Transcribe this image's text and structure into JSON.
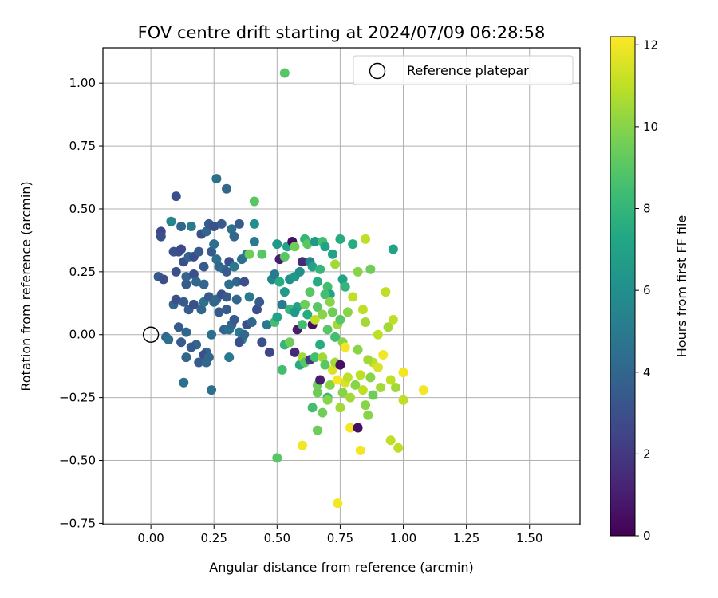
{
  "chart_data": {
    "type": "scatter",
    "title": "FOV centre drift starting at 2024/07/09 06:28:58",
    "xlabel": "Angular distance from reference (arcmin)",
    "ylabel": "Rotation from reference (arcmin)",
    "xlim": [
      -0.19,
      1.7
    ],
    "ylim": [
      -0.755,
      1.14
    ],
    "xticks": [
      0.0,
      0.25,
      0.5,
      0.75,
      1.0,
      1.25,
      1.5
    ],
    "xtick_labels": [
      "0.00",
      "0.25",
      "0.50",
      "0.75",
      "1.00",
      "1.25",
      "1.50"
    ],
    "yticks": [
      -0.75,
      -0.5,
      -0.25,
      0.0,
      0.25,
      0.5,
      0.75,
      1.0
    ],
    "ytick_labels": [
      "−0.75",
      "−0.50",
      "−0.25",
      "0.00",
      "0.25",
      "0.50",
      "0.75",
      "1.00"
    ],
    "grid": true,
    "legend": {
      "placement": "top-right",
      "entries": [
        {
          "label": "Reference platepar",
          "marker": "open-circle",
          "x": 0.0,
          "y": 0.0
        }
      ]
    },
    "colorbar": {
      "label": "Hours from first FF file",
      "colormap": "viridis",
      "range": [
        0,
        12.2
      ],
      "ticks": [
        0,
        2,
        4,
        6,
        8,
        10,
        12
      ],
      "tick_labels": [
        "0",
        "2",
        "4",
        "6",
        "8",
        "10",
        "12"
      ]
    },
    "points": [
      {
        "x": 0.1,
        "y": 0.55,
        "h": 3.0
      },
      {
        "x": 0.26,
        "y": 0.62,
        "h": 4.5
      },
      {
        "x": 0.3,
        "y": 0.58,
        "h": 4.0
      },
      {
        "x": 0.04,
        "y": 0.41,
        "h": 2.6
      },
      {
        "x": 0.04,
        "y": 0.39,
        "h": 3.0
      },
      {
        "x": 0.03,
        "y": 0.23,
        "h": 3.5
      },
      {
        "x": 0.05,
        "y": 0.22,
        "h": 3.0
      },
      {
        "x": 0.08,
        "y": 0.45,
        "h": 5.5
      },
      {
        "x": 0.09,
        "y": 0.33,
        "h": 3.0
      },
      {
        "x": 0.1,
        "y": 0.25,
        "h": 3.0
      },
      {
        "x": 0.11,
        "y": 0.33,
        "h": 3.0
      },
      {
        "x": 0.12,
        "y": 0.43,
        "h": 4.0
      },
      {
        "x": 0.12,
        "y": 0.34,
        "h": 2.6
      },
      {
        "x": 0.13,
        "y": 0.29,
        "h": 3.0
      },
      {
        "x": 0.14,
        "y": 0.2,
        "h": 3.5
      },
      {
        "x": 0.14,
        "y": 0.23,
        "h": 4.0
      },
      {
        "x": 0.15,
        "y": 0.31,
        "h": 4.0
      },
      {
        "x": 0.16,
        "y": 0.43,
        "h": 5.0
      },
      {
        "x": 0.17,
        "y": 0.31,
        "h": 3.0
      },
      {
        "x": 0.17,
        "y": 0.24,
        "h": 3.0
      },
      {
        "x": 0.18,
        "y": 0.21,
        "h": 4.0
      },
      {
        "x": 0.19,
        "y": 0.33,
        "h": 3.5
      },
      {
        "x": 0.2,
        "y": 0.4,
        "h": 3.0
      },
      {
        "x": 0.21,
        "y": 0.27,
        "h": 3.5
      },
      {
        "x": 0.21,
        "y": 0.2,
        "h": 4.0
      },
      {
        "x": 0.22,
        "y": 0.41,
        "h": 4.0
      },
      {
        "x": 0.23,
        "y": 0.44,
        "h": 3.5
      },
      {
        "x": 0.24,
        "y": 0.33,
        "h": 3.5
      },
      {
        "x": 0.25,
        "y": 0.43,
        "h": 3.0
      },
      {
        "x": 0.25,
        "y": 0.36,
        "h": 4.5
      },
      {
        "x": 0.26,
        "y": 0.3,
        "h": 4.5
      },
      {
        "x": 0.27,
        "y": 0.27,
        "h": 4.0
      },
      {
        "x": 0.28,
        "y": 0.44,
        "h": 3.5
      },
      {
        "x": 0.29,
        "y": 0.26,
        "h": 4.5
      },
      {
        "x": 0.3,
        "y": 0.25,
        "h": 3.5
      },
      {
        "x": 0.31,
        "y": 0.29,
        "h": 3.0
      },
      {
        "x": 0.31,
        "y": 0.2,
        "h": 4.5
      },
      {
        "x": 0.32,
        "y": 0.42,
        "h": 4.5
      },
      {
        "x": 0.33,
        "y": 0.39,
        "h": 4.0
      },
      {
        "x": 0.33,
        "y": 0.27,
        "h": 5.0
      },
      {
        "x": 0.34,
        "y": 0.21,
        "h": 4.0
      },
      {
        "x": 0.35,
        "y": 0.44,
        "h": 3.5
      },
      {
        "x": 0.36,
        "y": 0.3,
        "h": 4.5
      },
      {
        "x": 0.37,
        "y": 0.21,
        "h": 3.0
      },
      {
        "x": 0.38,
        "y": 0.32,
        "h": 5.0
      },
      {
        "x": 0.41,
        "y": 0.44,
        "h": 6.0
      },
      {
        "x": 0.41,
        "y": 0.37,
        "h": 5.0
      },
      {
        "x": 0.09,
        "y": 0.12,
        "h": 4.0
      },
      {
        "x": 0.1,
        "y": 0.14,
        "h": 3.0
      },
      {
        "x": 0.11,
        "y": 0.03,
        "h": 3.5
      },
      {
        "x": 0.13,
        "y": 0.13,
        "h": 3.5
      },
      {
        "x": 0.14,
        "y": 0.01,
        "h": 4.0
      },
      {
        "x": 0.15,
        "y": 0.1,
        "h": 3.5
      },
      {
        "x": 0.17,
        "y": 0.12,
        "h": 3.0
      },
      {
        "x": 0.18,
        "y": -0.04,
        "h": 4.0
      },
      {
        "x": 0.2,
        "y": 0.1,
        "h": 4.0
      },
      {
        "x": 0.21,
        "y": 0.13,
        "h": 4.5
      },
      {
        "x": 0.22,
        "y": -0.07,
        "h": 4.0
      },
      {
        "x": 0.23,
        "y": 0.15,
        "h": 3.5
      },
      {
        "x": 0.24,
        "y": 0.0,
        "h": 4.5
      },
      {
        "x": 0.25,
        "y": 0.13,
        "h": 4.0
      },
      {
        "x": 0.26,
        "y": 0.14,
        "h": 4.0
      },
      {
        "x": 0.27,
        "y": 0.09,
        "h": 3.5
      },
      {
        "x": 0.28,
        "y": 0.16,
        "h": 3.0
      },
      {
        "x": 0.29,
        "y": 0.02,
        "h": 4.0
      },
      {
        "x": 0.3,
        "y": 0.15,
        "h": 3.5
      },
      {
        "x": 0.3,
        "y": 0.1,
        "h": 3.5
      },
      {
        "x": 0.31,
        "y": 0.02,
        "h": 4.5
      },
      {
        "x": 0.32,
        "y": 0.04,
        "h": 4.0
      },
      {
        "x": 0.33,
        "y": 0.06,
        "h": 3.5
      },
      {
        "x": 0.34,
        "y": 0.14,
        "h": 4.0
      },
      {
        "x": 0.35,
        "y": 0.01,
        "h": 5.0
      },
      {
        "x": 0.36,
        "y": -0.02,
        "h": 5.5
      },
      {
        "x": 0.37,
        "y": 0.0,
        "h": 4.0
      },
      {
        "x": 0.38,
        "y": 0.04,
        "h": 3.0
      },
      {
        "x": 0.06,
        "y": -0.01,
        "h": 4.0
      },
      {
        "x": 0.07,
        "y": -0.02,
        "h": 4.5
      },
      {
        "x": 0.12,
        "y": -0.03,
        "h": 3.5
      },
      {
        "x": 0.14,
        "y": -0.09,
        "h": 4.0
      },
      {
        "x": 0.16,
        "y": -0.05,
        "h": 3.5
      },
      {
        "x": 0.19,
        "y": -0.11,
        "h": 3.5
      },
      {
        "x": 0.21,
        "y": -0.08,
        "h": 3.0
      },
      {
        "x": 0.22,
        "y": -0.11,
        "h": 4.0
      },
      {
        "x": 0.23,
        "y": -0.09,
        "h": 4.0
      },
      {
        "x": 0.13,
        "y": -0.19,
        "h": 4.5
      },
      {
        "x": 0.24,
        "y": -0.22,
        "h": 4.5
      },
      {
        "x": 0.31,
        "y": -0.09,
        "h": 5.0
      },
      {
        "x": 0.35,
        "y": -0.03,
        "h": 3.0
      },
      {
        "x": 0.39,
        "y": 0.15,
        "h": 5.0
      },
      {
        "x": 0.4,
        "y": 0.05,
        "h": 4.0
      },
      {
        "x": 0.42,
        "y": 0.1,
        "h": 3.0
      },
      {
        "x": 0.43,
        "y": 0.13,
        "h": 3.5
      },
      {
        "x": 0.44,
        "y": -0.03,
        "h": 3.0
      },
      {
        "x": 0.46,
        "y": 0.04,
        "h": 5.0
      },
      {
        "x": 0.47,
        "y": -0.07,
        "h": 2.5
      },
      {
        "x": 0.48,
        "y": 0.22,
        "h": 5.5
      },
      {
        "x": 0.49,
        "y": 0.24,
        "h": 5.0
      },
      {
        "x": 0.5,
        "y": 0.36,
        "h": 6.5
      },
      {
        "x": 0.51,
        "y": 0.3,
        "h": 1.0
      },
      {
        "x": 0.52,
        "y": 0.12,
        "h": 5.0
      },
      {
        "x": 0.53,
        "y": 0.31,
        "h": 9.0
      },
      {
        "x": 0.54,
        "y": 0.35,
        "h": 7.0
      },
      {
        "x": 0.55,
        "y": 0.22,
        "h": 6.0
      },
      {
        "x": 0.56,
        "y": 0.37,
        "h": 0.5
      },
      {
        "x": 0.57,
        "y": 0.35,
        "h": 9.5
      },
      {
        "x": 0.57,
        "y": 0.23,
        "h": 6.5
      },
      {
        "x": 0.58,
        "y": 0.11,
        "h": 7.0
      },
      {
        "x": 0.59,
        "y": 0.25,
        "h": 6.0
      },
      {
        "x": 0.6,
        "y": 0.29,
        "h": 1.5
      },
      {
        "x": 0.61,
        "y": 0.38,
        "h": 8.0
      },
      {
        "x": 0.62,
        "y": 0.36,
        "h": 9.0
      },
      {
        "x": 0.63,
        "y": 0.29,
        "h": 5.5
      },
      {
        "x": 0.64,
        "y": 0.27,
        "h": 7.0
      },
      {
        "x": 0.65,
        "y": 0.37,
        "h": 6.5
      },
      {
        "x": 0.66,
        "y": 0.21,
        "h": 7.5
      },
      {
        "x": 0.67,
        "y": 0.26,
        "h": 8.0
      },
      {
        "x": 0.68,
        "y": 0.37,
        "h": 8.5
      },
      {
        "x": 0.69,
        "y": 0.35,
        "h": 7.0
      },
      {
        "x": 0.7,
        "y": 0.19,
        "h": 8.5
      },
      {
        "x": 0.71,
        "y": 0.16,
        "h": 7.0
      },
      {
        "x": 0.72,
        "y": 0.32,
        "h": 7.0
      },
      {
        "x": 0.73,
        "y": 0.28,
        "h": 10.5
      },
      {
        "x": 0.75,
        "y": 0.38,
        "h": 7.5
      },
      {
        "x": 0.76,
        "y": 0.22,
        "h": 7.0
      },
      {
        "x": 0.77,
        "y": 0.19,
        "h": 8.0
      },
      {
        "x": 0.8,
        "y": 0.36,
        "h": 7.5
      },
      {
        "x": 0.82,
        "y": 0.25,
        "h": 10.0
      },
      {
        "x": 0.85,
        "y": 0.38,
        "h": 11.0
      },
      {
        "x": 0.87,
        "y": 0.26,
        "h": 9.5
      },
      {
        "x": 0.96,
        "y": 0.34,
        "h": 7.0
      },
      {
        "x": 0.41,
        "y": 0.53,
        "h": 9.0
      },
      {
        "x": 0.53,
        "y": 1.04,
        "h": 9.0
      },
      {
        "x": 0.39,
        "y": 0.32,
        "h": 9.5
      },
      {
        "x": 0.44,
        "y": 0.32,
        "h": 9.0
      },
      {
        "x": 0.49,
        "y": 0.05,
        "h": 8.5
      },
      {
        "x": 0.5,
        "y": 0.07,
        "h": 7.0
      },
      {
        "x": 0.51,
        "y": 0.21,
        "h": 7.5
      },
      {
        "x": 0.53,
        "y": 0.17,
        "h": 6.5
      },
      {
        "x": 0.55,
        "y": 0.1,
        "h": 8.0
      },
      {
        "x": 0.57,
        "y": 0.09,
        "h": 6.5
      },
      {
        "x": 0.58,
        "y": 0.02,
        "h": 1.0
      },
      {
        "x": 0.6,
        "y": 0.04,
        "h": 8.5
      },
      {
        "x": 0.61,
        "y": 0.12,
        "h": 9.5
      },
      {
        "x": 0.62,
        "y": 0.08,
        "h": 7.5
      },
      {
        "x": 0.63,
        "y": 0.17,
        "h": 9.0
      },
      {
        "x": 0.64,
        "y": 0.04,
        "h": 0.5
      },
      {
        "x": 0.65,
        "y": 0.06,
        "h": 11.0
      },
      {
        "x": 0.66,
        "y": 0.11,
        "h": 9.0
      },
      {
        "x": 0.67,
        "y": -0.04,
        "h": 7.5
      },
      {
        "x": 0.68,
        "y": 0.08,
        "h": 10.0
      },
      {
        "x": 0.69,
        "y": 0.16,
        "h": 8.5
      },
      {
        "x": 0.7,
        "y": 0.02,
        "h": 9.0
      },
      {
        "x": 0.71,
        "y": 0.13,
        "h": 10.0
      },
      {
        "x": 0.72,
        "y": 0.09,
        "h": 9.5
      },
      {
        "x": 0.73,
        "y": -0.01,
        "h": 8.5
      },
      {
        "x": 0.74,
        "y": 0.04,
        "h": 10.5
      },
      {
        "x": 0.75,
        "y": 0.06,
        "h": 9.0
      },
      {
        "x": 0.76,
        "y": -0.03,
        "h": 10.0
      },
      {
        "x": 0.77,
        "y": -0.05,
        "h": 12.0
      },
      {
        "x": 0.78,
        "y": 0.09,
        "h": 10.0
      },
      {
        "x": 0.8,
        "y": 0.15,
        "h": 11.0
      },
      {
        "x": 0.82,
        "y": -0.06,
        "h": 10.0
      },
      {
        "x": 0.84,
        "y": 0.1,
        "h": 11.0
      },
      {
        "x": 0.85,
        "y": 0.05,
        "h": 10.5
      },
      {
        "x": 0.88,
        "y": -0.11,
        "h": 11.0
      },
      {
        "x": 0.9,
        "y": 0.0,
        "h": 11.0
      },
      {
        "x": 0.93,
        "y": 0.17,
        "h": 11.0
      },
      {
        "x": 0.94,
        "y": 0.03,
        "h": 10.5
      },
      {
        "x": 0.96,
        "y": 0.06,
        "h": 11.0
      },
      {
        "x": 0.53,
        "y": -0.04,
        "h": 8.0
      },
      {
        "x": 0.52,
        "y": -0.14,
        "h": 8.5
      },
      {
        "x": 0.55,
        "y": -0.03,
        "h": 9.5
      },
      {
        "x": 0.57,
        "y": -0.07,
        "h": 1.5
      },
      {
        "x": 0.59,
        "y": -0.12,
        "h": 7.5
      },
      {
        "x": 0.6,
        "y": -0.09,
        "h": 10.5
      },
      {
        "x": 0.61,
        "y": -0.11,
        "h": 9.0
      },
      {
        "x": 0.63,
        "y": -0.1,
        "h": 2.0
      },
      {
        "x": 0.65,
        "y": -0.09,
        "h": 8.5
      },
      {
        "x": 0.66,
        "y": -0.2,
        "h": 9.5
      },
      {
        "x": 0.67,
        "y": -0.18,
        "h": 1.0
      },
      {
        "x": 0.68,
        "y": -0.09,
        "h": 10.5
      },
      {
        "x": 0.69,
        "y": -0.12,
        "h": 9.0
      },
      {
        "x": 0.7,
        "y": -0.25,
        "h": 8.0
      },
      {
        "x": 0.71,
        "y": -0.2,
        "h": 10.0
      },
      {
        "x": 0.72,
        "y": -0.14,
        "h": 11.5
      },
      {
        "x": 0.73,
        "y": -0.11,
        "h": 10.5
      },
      {
        "x": 0.74,
        "y": -0.18,
        "h": 12.0
      },
      {
        "x": 0.75,
        "y": -0.12,
        "h": 0.5
      },
      {
        "x": 0.76,
        "y": -0.23,
        "h": 10.0
      },
      {
        "x": 0.77,
        "y": -0.19,
        "h": 11.5
      },
      {
        "x": 0.78,
        "y": -0.17,
        "h": 11.0
      },
      {
        "x": 0.79,
        "y": -0.25,
        "h": 10.5
      },
      {
        "x": 0.81,
        "y": -0.2,
        "h": 10.0
      },
      {
        "x": 0.83,
        "y": -0.16,
        "h": 11.0
      },
      {
        "x": 0.84,
        "y": -0.22,
        "h": 11.0
      },
      {
        "x": 0.85,
        "y": -0.28,
        "h": 10.0
      },
      {
        "x": 0.86,
        "y": -0.1,
        "h": 10.5
      },
      {
        "x": 0.87,
        "y": -0.17,
        "h": 10.0
      },
      {
        "x": 0.88,
        "y": -0.24,
        "h": 9.5
      },
      {
        "x": 0.9,
        "y": -0.13,
        "h": 11.5
      },
      {
        "x": 0.91,
        "y": -0.21,
        "h": 10.5
      },
      {
        "x": 0.92,
        "y": -0.08,
        "h": 12.0
      },
      {
        "x": 0.95,
        "y": -0.18,
        "h": 11.0
      },
      {
        "x": 0.97,
        "y": -0.21,
        "h": 10.5
      },
      {
        "x": 1.0,
        "y": -0.15,
        "h": 12.0
      },
      {
        "x": 1.0,
        "y": -0.26,
        "h": 11.0
      },
      {
        "x": 1.08,
        "y": -0.22,
        "h": 12.0
      },
      {
        "x": 0.64,
        "y": -0.29,
        "h": 8.5
      },
      {
        "x": 0.66,
        "y": -0.23,
        "h": 9.5
      },
      {
        "x": 0.68,
        "y": -0.31,
        "h": 9.5
      },
      {
        "x": 0.7,
        "y": -0.26,
        "h": 10.0
      },
      {
        "x": 0.75,
        "y": -0.29,
        "h": 10.5
      },
      {
        "x": 0.86,
        "y": -0.32,
        "h": 10.0
      },
      {
        "x": 0.66,
        "y": -0.38,
        "h": 9.5
      },
      {
        "x": 0.6,
        "y": -0.44,
        "h": 12.0
      },
      {
        "x": 0.5,
        "y": -0.49,
        "h": 9.0
      },
      {
        "x": 0.79,
        "y": -0.37,
        "h": 12.0
      },
      {
        "x": 0.82,
        "y": -0.37,
        "h": 0.5
      },
      {
        "x": 0.83,
        "y": -0.46,
        "h": 12.0
      },
      {
        "x": 0.95,
        "y": -0.42,
        "h": 11.0
      },
      {
        "x": 0.98,
        "y": -0.45,
        "h": 11.0
      },
      {
        "x": 0.74,
        "y": -0.67,
        "h": 12.0
      }
    ]
  }
}
